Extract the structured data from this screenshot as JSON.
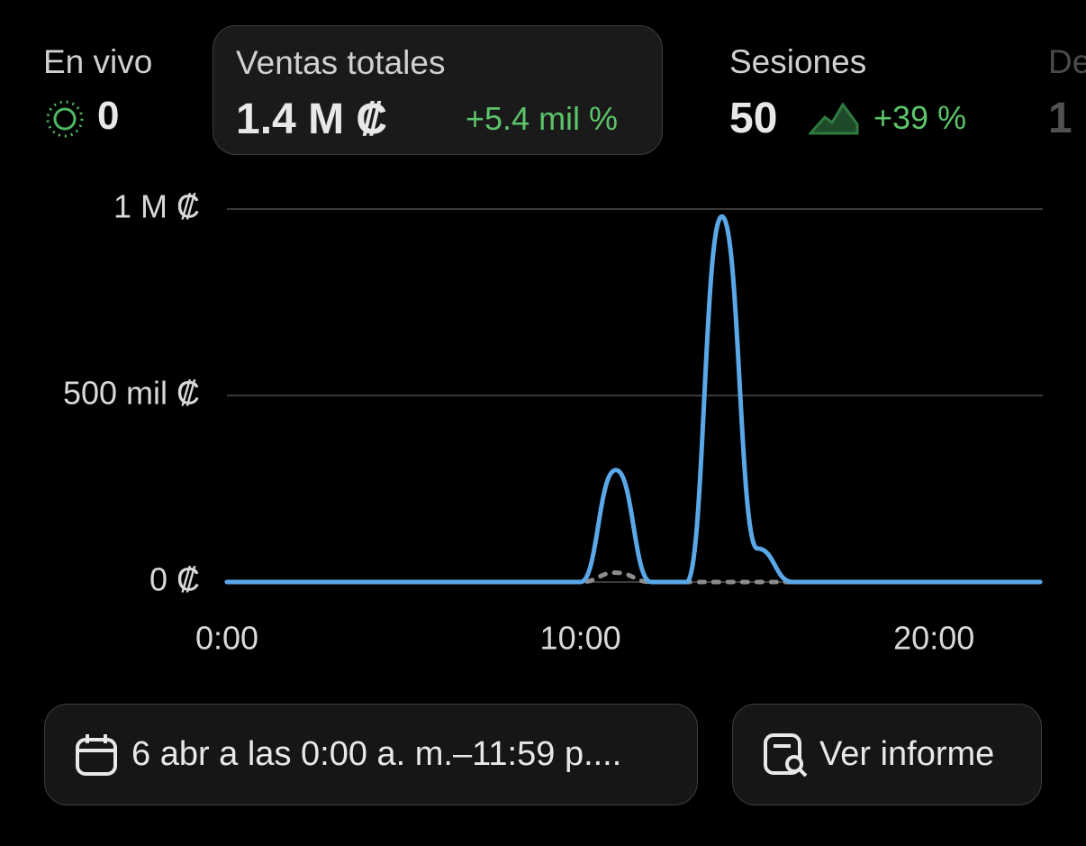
{
  "metrics": [
    {
      "label": "En vivo",
      "value": "0"
    },
    {
      "label": "Ventas totales",
      "value": "1.4 M ₡",
      "change": "+5.4 mil %"
    },
    {
      "label": "Sesiones",
      "value": "50",
      "change": "+39 %"
    },
    {
      "label": "De",
      "value": "1"
    }
  ],
  "chart_data": {
    "type": "line",
    "x": [
      0,
      1,
      2,
      3,
      4,
      5,
      6,
      7,
      8,
      9,
      10,
      11,
      12,
      13,
      14,
      15,
      16,
      17,
      18,
      19,
      20,
      21,
      22,
      23
    ],
    "series": [
      {
        "color": "#5aa8e8",
        "values": [
          0,
          0,
          0,
          0,
          0,
          0,
          0,
          0,
          0,
          0,
          0,
          300000,
          0,
          0,
          980000,
          90000,
          0,
          0,
          0,
          0,
          0,
          0,
          0,
          0
        ]
      },
      {
        "color": "#8c8c8c",
        "dash": true,
        "values": [
          0,
          0,
          0,
          0,
          0,
          0,
          0,
          0,
          0,
          0,
          0,
          25000,
          0,
          0,
          0,
          0,
          0,
          0,
          0,
          0,
          0,
          0,
          0,
          0
        ]
      }
    ],
    "xlim": [
      0,
      23
    ],
    "xticks": [
      {
        "value": 0,
        "label": "0:00"
      },
      {
        "value": 10,
        "label": "10:00"
      },
      {
        "value": 20,
        "label": "20:00"
      }
    ],
    "ylim": [
      0,
      1000000
    ],
    "yticks": [
      {
        "value": 0,
        "label": "0 ₡"
      },
      {
        "value": 500000,
        "label": "500 mil ₡"
      },
      {
        "value": 1000000,
        "label": "1 M ₡"
      }
    ],
    "grid": true
  },
  "buttons": {
    "date_range": "6 abr a las 0:00 a. m.–11:59 p....",
    "report": "Ver informe"
  }
}
